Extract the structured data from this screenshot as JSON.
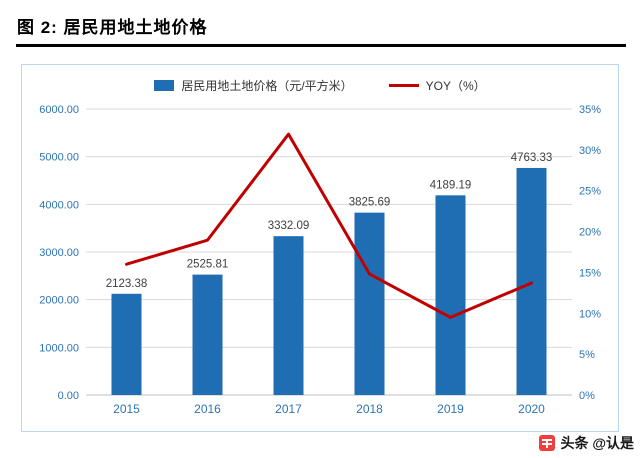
{
  "header": {
    "title": "图 2: 居民用地土地价格"
  },
  "watermark": {
    "text": "头条 @认是"
  },
  "chart_data": {
    "type": "bar+line",
    "categories": [
      "2015",
      "2016",
      "2017",
      "2018",
      "2019",
      "2020"
    ],
    "series": [
      {
        "name": "居民用地土地价格（元/平方米）",
        "type": "bar",
        "axis": "left",
        "color": "#1F6EB4",
        "values": [
          2123.38,
          2525.81,
          3332.09,
          3825.69,
          4189.19,
          4763.33
        ],
        "data_labels": [
          "2123.38",
          "2525.81",
          "3332.09",
          "3825.69",
          "4189.19",
          "4763.33"
        ]
      },
      {
        "name": "YOY（%）",
        "type": "line",
        "axis": "right",
        "color": "#C00000",
        "values": [
          16.0,
          18.95,
          31.92,
          14.81,
          9.5,
          13.71
        ]
      }
    ],
    "left_axis": {
      "min": 0,
      "max": 6000,
      "step": 1000,
      "ticks": [
        "6000.00",
        "5000.00",
        "4000.00",
        "3000.00",
        "2000.00",
        "1000.00",
        "0.00"
      ]
    },
    "right_axis": {
      "min": 0,
      "max": 35,
      "step": 5,
      "ticks": [
        "35%",
        "30%",
        "25%",
        "20%",
        "15%",
        "10%",
        "5%",
        "0%"
      ]
    },
    "grid": true,
    "legend_position": "top",
    "axis_label_color": "#2E74B5",
    "data_label_color": "#404040",
    "grid_color": "#D9D9D9",
    "axis_line_color": "#BFBFBF"
  }
}
